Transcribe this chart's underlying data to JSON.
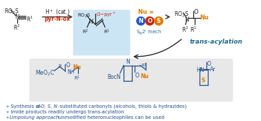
{
  "bg_color": "#ffffff",
  "bullet_color": "#1e4d8c",
  "bullet_lines": [
    "» Synthesis of α–O, S, N‑substituted carbonyls (alcohols, thiols & hydrazides)",
    "» Imide products readily undergo trans-acylation",
    "» Umpolung approach: unmodified heteronucleophiles can be used"
  ],
  "dark_color": "#222222",
  "teal_color": "#1e6b8c",
  "arrow_color": "#444444",
  "red_color": "#cc2200",
  "orange_color": "#e07800",
  "blue_circle": "#2255cc",
  "red_circle": "#cc2200",
  "orange_circle": "#e07800",
  "intermediate_bg": "#cce5f5",
  "product_box_bg": "#e8e8e8",
  "structure_color": "#1e4d8c"
}
